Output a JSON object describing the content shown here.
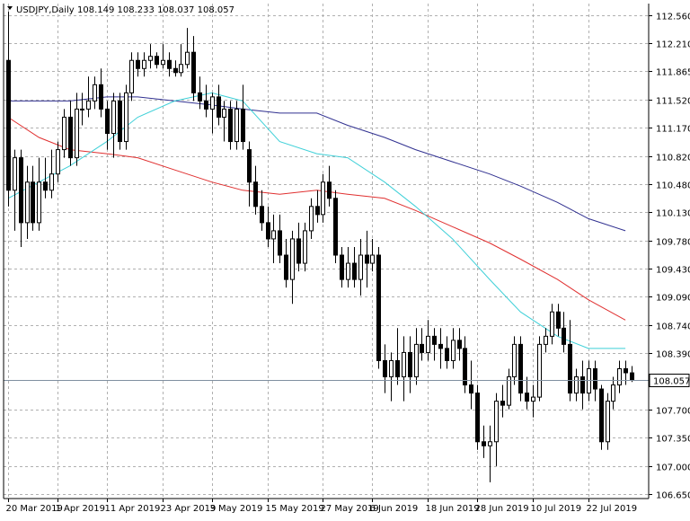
{
  "header": {
    "symbol_label": "USDJPY,Daily",
    "ohlc_label": "108.149 108.233 108.037 108.057"
  },
  "chart_data": {
    "type": "candlestick",
    "title": "USDJPY,Daily",
    "price_ticks": [
      "112.560",
      "112.210",
      "111.865",
      "111.520",
      "111.170",
      "110.820",
      "110.480",
      "110.130",
      "109.780",
      "109.430",
      "109.090",
      "108.740",
      "108.390",
      "107.700",
      "107.350",
      "107.000",
      "106.650"
    ],
    "current_price": "108.057",
    "date_ticks": [
      "20 Mar 2019",
      "1 Apr 2019",
      "11 Apr 2019",
      "23 Apr 2019",
      "3 May 2019",
      "15 May 2019",
      "27 May 2019",
      "6 Jun 2019",
      "18 Jun 2019",
      "28 Jun 2019",
      "10 Jul 2019",
      "22 Jul 2019"
    ],
    "ylim": [
      106.6,
      112.7
    ],
    "colors": {
      "bull": "#ffffff",
      "bear": "#000000",
      "ma_fast": "#3fd0d8",
      "ma_mid": "#e03030",
      "ma_slow": "#303090",
      "grid": "#b0b0b0",
      "price_line": "#8090a0"
    },
    "candles": [
      [
        112.0,
        112.6,
        110.2,
        110.4
      ],
      [
        110.4,
        110.9,
        109.9,
        110.8
      ],
      [
        110.8,
        110.9,
        109.7,
        110.0
      ],
      [
        110.0,
        110.7,
        109.8,
        110.5
      ],
      [
        110.5,
        110.7,
        109.9,
        110.0
      ],
      [
        110.0,
        110.8,
        109.9,
        110.5
      ],
      [
        110.5,
        110.8,
        110.3,
        110.4
      ],
      [
        110.4,
        110.9,
        110.3,
        110.6
      ],
      [
        110.6,
        111.0,
        110.5,
        110.9
      ],
      [
        110.9,
        111.4,
        110.8,
        111.3
      ],
      [
        111.3,
        111.5,
        110.7,
        110.8
      ],
      [
        110.8,
        111.6,
        110.7,
        111.4
      ],
      [
        111.4,
        111.6,
        111.2,
        111.4
      ],
      [
        111.4,
        111.8,
        111.3,
        111.5
      ],
      [
        111.5,
        111.8,
        111.4,
        111.7
      ],
      [
        111.7,
        111.9,
        111.3,
        111.4
      ],
      [
        111.4,
        111.5,
        110.9,
        111.1
      ],
      [
        111.1,
        111.6,
        110.8,
        111.5
      ],
      [
        111.5,
        111.6,
        110.9,
        111.0
      ],
      [
        111.0,
        111.7,
        110.9,
        111.6
      ],
      [
        111.6,
        112.1,
        111.5,
        112.0
      ],
      [
        112.0,
        112.1,
        111.8,
        111.9
      ],
      [
        111.9,
        112.1,
        111.8,
        112.0
      ],
      [
        112.0,
        112.2,
        111.9,
        112.05
      ],
      [
        112.05,
        112.1,
        111.9,
        111.95
      ],
      [
        111.95,
        112.2,
        111.9,
        112.0
      ],
      [
        112.0,
        112.1,
        111.8,
        111.9
      ],
      [
        111.9,
        112.0,
        111.8,
        111.85
      ],
      [
        111.85,
        112.2,
        111.8,
        111.95
      ],
      [
        111.95,
        112.4,
        111.9,
        112.1
      ],
      [
        112.1,
        112.3,
        111.5,
        111.6
      ],
      [
        111.6,
        111.8,
        111.4,
        111.5
      ],
      [
        111.5,
        111.7,
        111.3,
        111.4
      ],
      [
        111.4,
        111.6,
        111.1,
        111.55
      ],
      [
        111.55,
        111.7,
        111.2,
        111.3
      ],
      [
        111.3,
        111.5,
        111.0,
        111.4
      ],
      [
        111.4,
        111.5,
        110.9,
        111.0
      ],
      [
        111.0,
        111.5,
        110.9,
        111.4
      ],
      [
        111.4,
        111.7,
        110.9,
        111.0
      ],
      [
        110.9,
        111.0,
        110.2,
        110.5
      ],
      [
        110.5,
        110.7,
        110.1,
        110.2
      ],
      [
        110.2,
        110.4,
        109.9,
        110.0
      ],
      [
        110.0,
        110.2,
        109.7,
        109.8
      ],
      [
        109.8,
        110.1,
        109.5,
        109.9
      ],
      [
        109.9,
        110.1,
        109.5,
        109.6
      ],
      [
        109.6,
        109.8,
        109.2,
        109.3
      ],
      [
        109.3,
        109.9,
        109.0,
        109.8
      ],
      [
        109.8,
        110.0,
        109.4,
        109.5
      ],
      [
        109.5,
        110.0,
        109.4,
        109.9
      ],
      [
        109.9,
        110.3,
        109.8,
        110.2
      ],
      [
        110.2,
        110.4,
        110.0,
        110.1
      ],
      [
        110.1,
        110.6,
        110.0,
        110.5
      ],
      [
        110.5,
        110.7,
        110.2,
        110.3
      ],
      [
        110.3,
        110.4,
        109.5,
        109.6
      ],
      [
        109.6,
        109.7,
        109.2,
        109.3
      ],
      [
        109.3,
        109.7,
        109.2,
        109.5
      ],
      [
        109.5,
        109.7,
        109.2,
        109.3
      ],
      [
        109.3,
        109.8,
        109.1,
        109.6
      ],
      [
        109.6,
        109.9,
        109.2,
        109.5
      ],
      [
        109.5,
        109.8,
        109.4,
        109.6
      ],
      [
        109.6,
        109.7,
        108.2,
        108.3
      ],
      [
        108.3,
        108.5,
        107.9,
        108.1
      ],
      [
        108.1,
        108.4,
        107.8,
        108.3
      ],
      [
        108.3,
        108.7,
        108.0,
        108.1
      ],
      [
        108.1,
        108.6,
        107.8,
        108.4
      ],
      [
        108.4,
        108.6,
        107.9,
        108.1
      ],
      [
        108.1,
        108.7,
        108.0,
        108.5
      ],
      [
        108.5,
        108.7,
        108.3,
        108.4
      ],
      [
        108.4,
        108.8,
        108.3,
        108.6
      ],
      [
        108.6,
        108.7,
        108.3,
        108.5
      ],
      [
        108.5,
        108.7,
        108.2,
        108.45
      ],
      [
        108.45,
        108.6,
        108.2,
        108.3
      ],
      [
        108.3,
        108.7,
        108.2,
        108.55
      ],
      [
        108.55,
        108.7,
        108.3,
        108.45
      ],
      [
        108.45,
        108.6,
        107.9,
        108.0
      ],
      [
        108.0,
        108.3,
        107.7,
        107.9
      ],
      [
        107.9,
        108.0,
        107.2,
        107.3
      ],
      [
        107.3,
        107.5,
        107.1,
        107.25
      ],
      [
        107.25,
        107.5,
        106.8,
        107.3
      ],
      [
        107.3,
        107.9,
        107.0,
        107.8
      ],
      [
        107.8,
        108.0,
        107.6,
        107.75
      ],
      [
        107.75,
        108.2,
        107.7,
        108.1
      ],
      [
        108.1,
        108.6,
        108.0,
        108.5
      ],
      [
        108.5,
        108.6,
        107.8,
        107.9
      ],
      [
        107.9,
        108.1,
        107.7,
        107.8
      ],
      [
        107.8,
        108.0,
        107.6,
        107.85
      ],
      [
        107.85,
        108.6,
        107.8,
        108.5
      ],
      [
        108.5,
        108.7,
        108.4,
        108.6
      ],
      [
        108.6,
        109.0,
        108.5,
        108.9
      ],
      [
        108.9,
        109.0,
        108.6,
        108.7
      ],
      [
        108.7,
        108.9,
        108.4,
        108.5
      ],
      [
        108.5,
        108.8,
        107.8,
        107.9
      ],
      [
        107.9,
        108.2,
        107.8,
        108.1
      ],
      [
        108.1,
        108.3,
        107.7,
        107.9
      ],
      [
        107.9,
        108.3,
        107.8,
        108.2
      ],
      [
        108.2,
        108.3,
        107.8,
        107.95
      ],
      [
        107.95,
        108.0,
        107.2,
        107.3
      ],
      [
        107.3,
        107.9,
        107.2,
        107.8
      ],
      [
        107.8,
        108.1,
        107.7,
        108.0
      ],
      [
        108.0,
        108.3,
        107.9,
        108.2
      ],
      [
        108.2,
        108.3,
        108.0,
        108.15
      ],
      [
        108.149,
        108.233,
        108.037,
        108.057
      ]
    ],
    "ma_fast": [
      [
        0,
        110.3
      ],
      [
        5,
        110.5
      ],
      [
        10,
        110.7
      ],
      [
        16,
        111.0
      ],
      [
        21,
        111.3
      ],
      [
        27,
        111.5
      ],
      [
        33,
        111.6
      ],
      [
        38,
        111.5
      ],
      [
        44,
        111.0
      ],
      [
        50,
        110.85
      ],
      [
        55,
        110.8
      ],
      [
        61,
        110.5
      ],
      [
        66,
        110.2
      ],
      [
        72,
        109.8
      ],
      [
        78,
        109.3
      ],
      [
        83,
        108.9
      ],
      [
        89,
        108.6
      ],
      [
        94,
        108.45
      ],
      [
        100,
        108.45
      ]
    ],
    "ma_mid": [
      [
        0,
        111.3
      ],
      [
        5,
        111.05
      ],
      [
        10,
        110.9
      ],
      [
        16,
        110.85
      ],
      [
        21,
        110.8
      ],
      [
        27,
        110.65
      ],
      [
        33,
        110.5
      ],
      [
        38,
        110.4
      ],
      [
        44,
        110.35
      ],
      [
        50,
        110.4
      ],
      [
        55,
        110.35
      ],
      [
        61,
        110.3
      ],
      [
        66,
        110.15
      ],
      [
        72,
        109.95
      ],
      [
        78,
        109.75
      ],
      [
        83,
        109.55
      ],
      [
        89,
        109.3
      ],
      [
        94,
        109.05
      ],
      [
        100,
        108.8
      ]
    ],
    "ma_slow": [
      [
        0,
        111.5
      ],
      [
        5,
        111.5
      ],
      [
        10,
        111.5
      ],
      [
        16,
        111.55
      ],
      [
        21,
        111.55
      ],
      [
        27,
        111.5
      ],
      [
        33,
        111.45
      ],
      [
        38,
        111.4
      ],
      [
        44,
        111.35
      ],
      [
        50,
        111.35
      ],
      [
        55,
        111.2
      ],
      [
        61,
        111.05
      ],
      [
        66,
        110.9
      ],
      [
        72,
        110.75
      ],
      [
        78,
        110.6
      ],
      [
        83,
        110.45
      ],
      [
        89,
        110.25
      ],
      [
        94,
        110.05
      ],
      [
        100,
        109.9
      ]
    ]
  }
}
